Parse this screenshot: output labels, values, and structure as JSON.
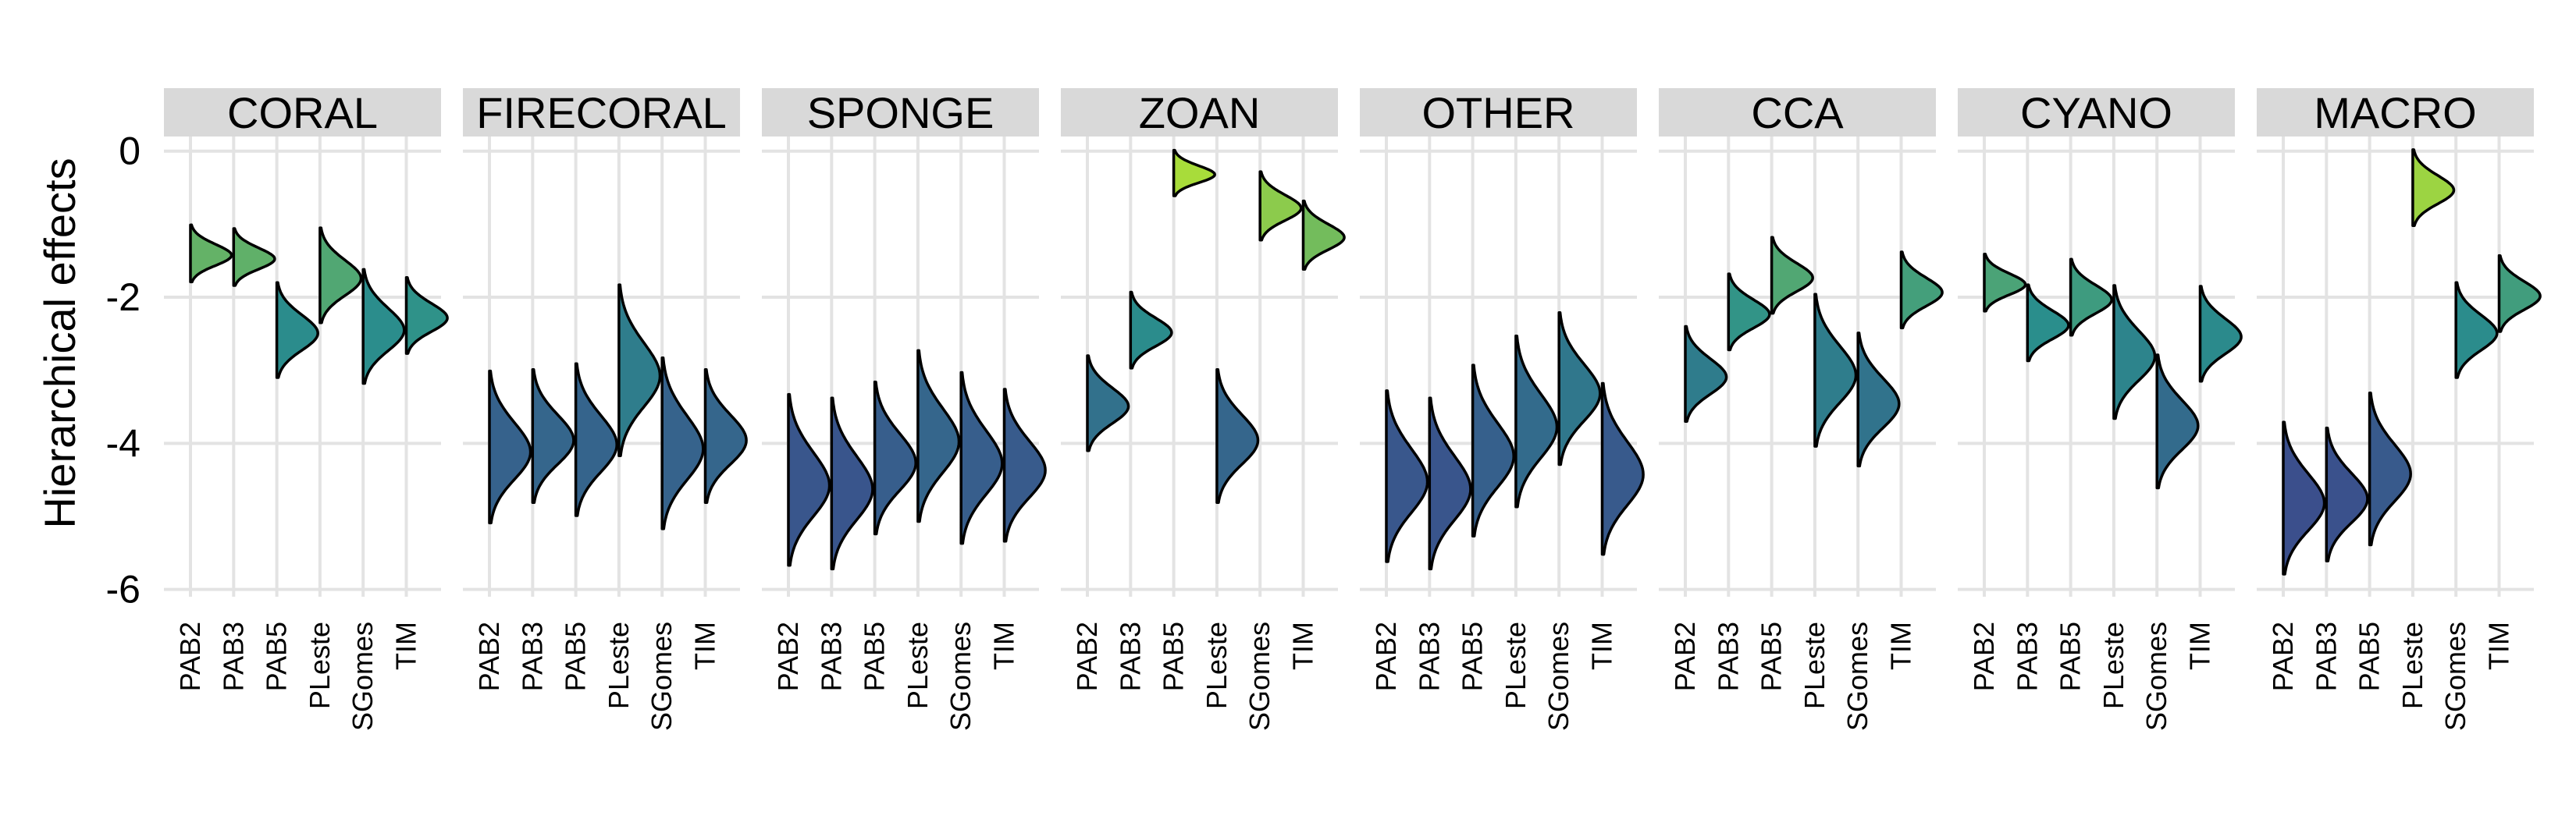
{
  "chart_data": {
    "type": "violin",
    "title": "",
    "xlabel": "",
    "ylabel": "Hierarchical effects",
    "ylim": [
      -6.1,
      0.2
    ],
    "yticks": [
      0,
      -2,
      -4,
      -6
    ],
    "ytick_labels": [
      "0",
      "-2",
      "-4",
      "-6"
    ],
    "grid": true,
    "legend": "none",
    "sites": [
      "PAB2",
      "PAB3",
      "PAB5",
      "PLeste",
      "SGomes",
      "TIM"
    ],
    "palette": {
      "low": "#3b4e8c",
      "mid": "#2a8f8c",
      "high": "#a8dc3a"
    },
    "panels": [
      {
        "name": "CORAL",
        "means": [
          -1.4,
          -1.45,
          -2.45,
          -1.7,
          -2.4,
          -2.25
        ],
        "sds": [
          0.15,
          0.15,
          0.25,
          0.25,
          0.3,
          0.2
        ]
      },
      {
        "name": "FIRECORAL",
        "means": [
          -4.05,
          -3.9,
          -3.95,
          -3.0,
          -4.0,
          -3.9
        ],
        "sds": [
          0.4,
          0.35,
          0.4,
          0.45,
          0.45,
          0.35
        ]
      },
      {
        "name": "SPONGE",
        "means": [
          -4.5,
          -4.55,
          -4.2,
          -3.9,
          -4.2,
          -4.3
        ],
        "sds": [
          0.45,
          0.45,
          0.4,
          0.45,
          0.45,
          0.4
        ]
      },
      {
        "name": "ZOAN",
        "means": [
          -3.45,
          -2.45,
          -0.3,
          -3.9,
          -0.75,
          -1.15
        ],
        "sds": [
          0.25,
          0.2,
          0.12,
          0.35,
          0.18,
          0.18
        ]
      },
      {
        "name": "OTHER",
        "means": [
          -4.45,
          -4.55,
          -4.1,
          -3.7,
          -3.25,
          -4.35
        ],
        "sds": [
          0.45,
          0.45,
          0.45,
          0.45,
          0.4,
          0.45
        ]
      },
      {
        "name": "CCA",
        "means": [
          -3.05,
          -2.2,
          -1.7,
          -3.0,
          -3.4,
          -1.9
        ],
        "sds": [
          0.25,
          0.2,
          0.2,
          0.4,
          0.35,
          0.2
        ]
      },
      {
        "name": "CYANO",
        "means": [
          -1.8,
          -2.35,
          -2.0,
          -2.75,
          -3.7,
          -2.5
        ],
        "sds": [
          0.15,
          0.2,
          0.2,
          0.35,
          0.35,
          0.25
        ]
      },
      {
        "name": "MACRO",
        "means": [
          -4.75,
          -4.7,
          -4.35,
          -0.5,
          -2.45,
          -1.95
        ],
        "sds": [
          0.4,
          0.35,
          0.4,
          0.2,
          0.25,
          0.2
        ]
      }
    ]
  }
}
